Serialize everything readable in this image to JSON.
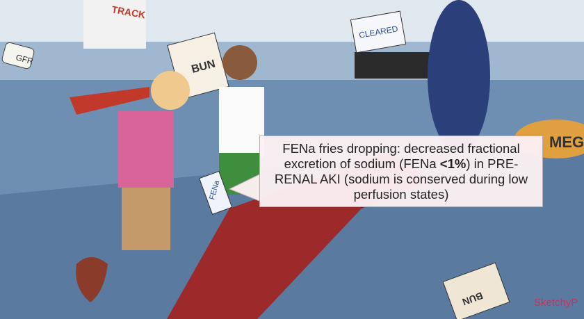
{
  "scene": {
    "labels": {
      "track": "TRACK",
      "gfr": "GFR",
      "bun_bag": "BUN",
      "cleared": "CLEARED",
      "fena_bag": "FENa",
      "sign": "MEGAK",
      "bun_floor": "BUN",
      "watermark": "SketchyP"
    }
  },
  "callout": {
    "before": "FENa fries dropping: decreased fractional excretion of sodium (FENa ",
    "bold": "<1%",
    "after": ") in PRE-RENAL AKI (sodium is conserved during low perfusion states)"
  }
}
